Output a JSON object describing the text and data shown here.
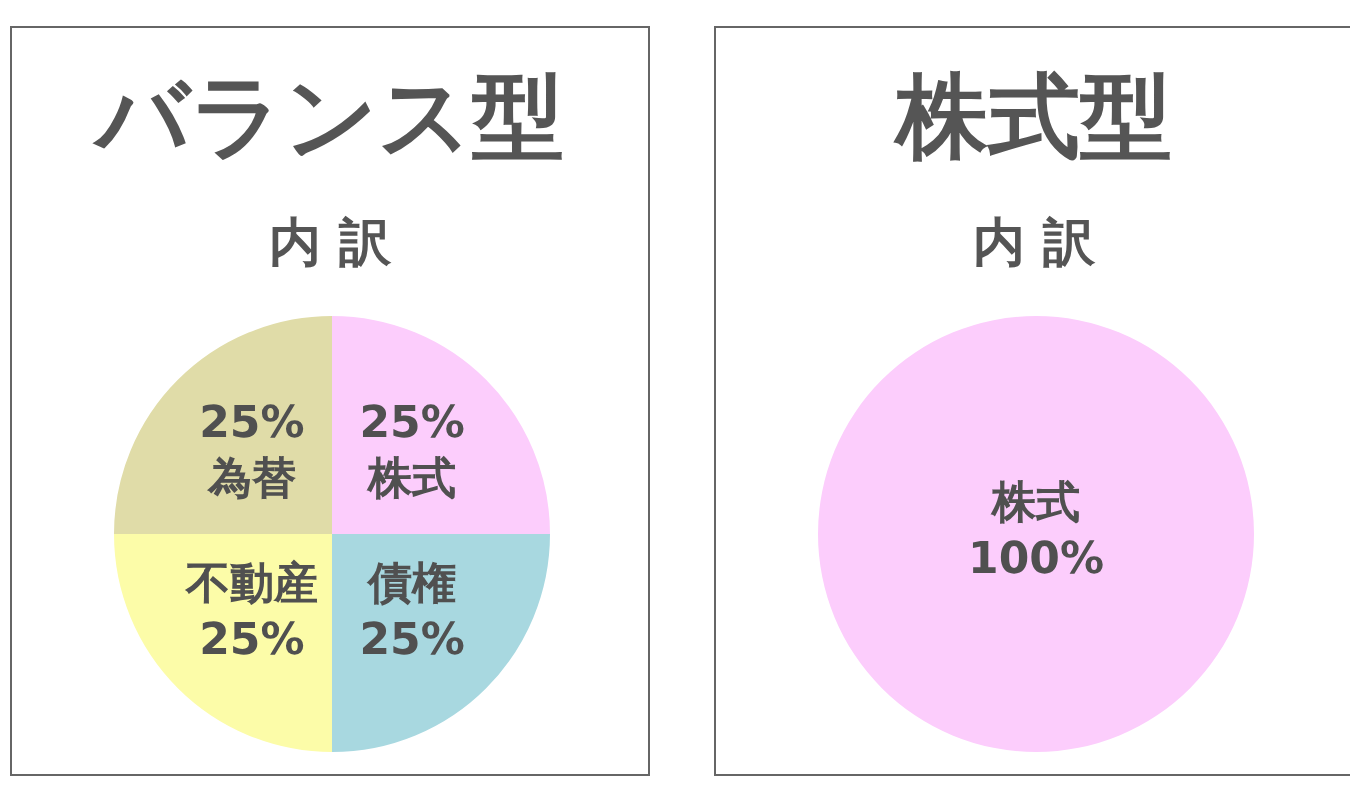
{
  "chart_data": [
    {
      "type": "pie",
      "title": "バランス型",
      "subtitle": "内 訳",
      "categories": [
        "株式",
        "債権",
        "不動産",
        "為替"
      ],
      "values": [
        25,
        25,
        25,
        25
      ],
      "value_labels": [
        "25%",
        "25%",
        "25%",
        "25%"
      ],
      "colors": [
        "#fccdfc",
        "#a8d8e0",
        "#fcfca8",
        "#e0dca8"
      ],
      "legend": false
    },
    {
      "type": "pie",
      "title": "株式型",
      "subtitle": "内 訳",
      "categories": [
        "株式"
      ],
      "values": [
        100
      ],
      "value_labels": [
        "100%"
      ],
      "colors": [
        "#fccdfc"
      ],
      "legend": false
    }
  ]
}
